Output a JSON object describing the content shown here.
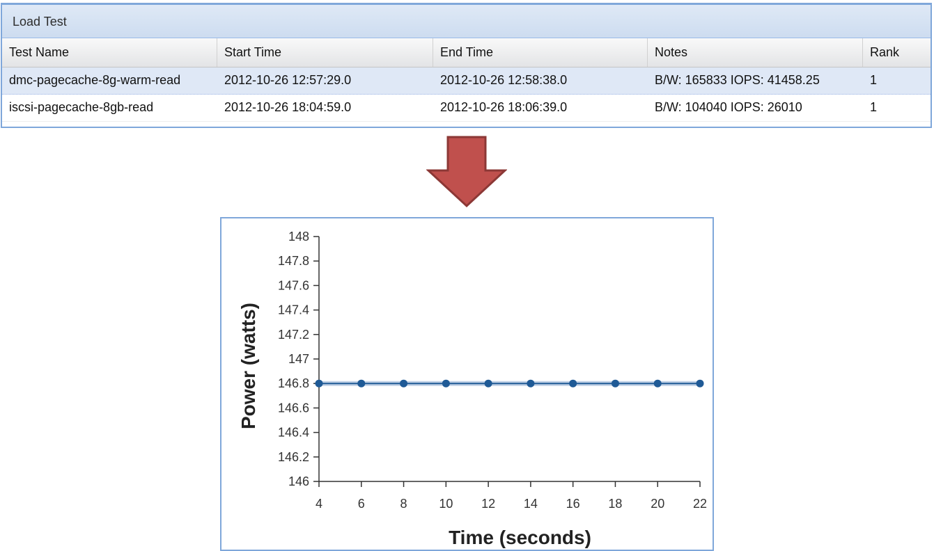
{
  "grid": {
    "title": "Load Test",
    "columns": [
      "Test Name",
      "Start Time",
      "End Time",
      "Notes",
      "Rank"
    ],
    "rows": [
      [
        "dmc-pagecache-8g-warm-read",
        "2012-10-26 12:57:29.0",
        "2012-10-26 12:58:38.0",
        "B/W: 165833 IOPS: 41458.25",
        "1"
      ],
      [
        "iscsi-pagecache-8gb-read",
        "2012-10-26 18:04:59.0",
        "2012-10-26 18:06:39.0",
        "B/W: 104040 IOPS: 26010",
        "1"
      ]
    ],
    "selected_row": 0
  },
  "arrow": {
    "icon": "down-arrow-icon",
    "color": "#c0504d"
  },
  "chart_data": {
    "type": "line",
    "xlabel": "Time (seconds)",
    "ylabel": "Power (watts)",
    "xlim": [
      4,
      22
    ],
    "ylim": [
      146,
      148
    ],
    "xticks": [
      "4",
      "6",
      "8",
      "10",
      "12",
      "14",
      "16",
      "18",
      "20",
      "22"
    ],
    "yticks": [
      "146",
      "146.2",
      "146.4",
      "146.6",
      "146.8",
      "147",
      "147.2",
      "147.4",
      "147.6",
      "147.8",
      "148"
    ],
    "series": [
      {
        "x": [
          4,
          6,
          8,
          10,
          12,
          14,
          16,
          18,
          20,
          22
        ],
        "y": [
          146.8,
          146.8,
          146.8,
          146.8,
          146.8,
          146.8,
          146.8,
          146.8,
          146.8,
          146.8
        ],
        "color": "#1f5a96"
      }
    ],
    "grid": false
  }
}
